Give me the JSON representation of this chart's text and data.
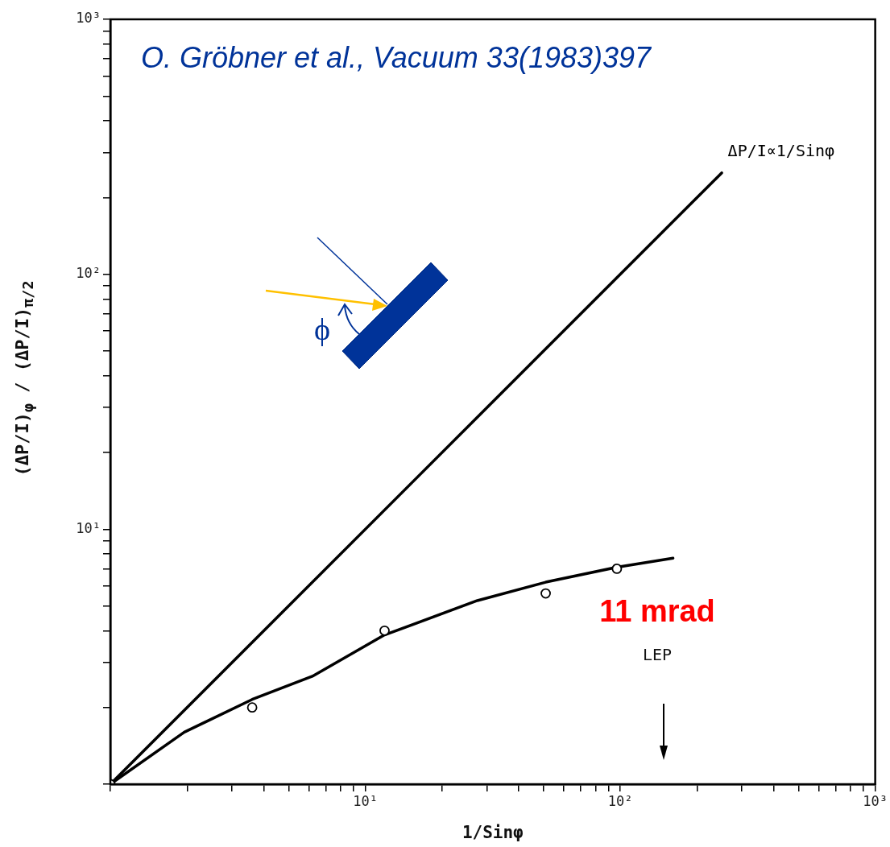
{
  "chart_data": {
    "type": "line",
    "xlabel": "1/Sinφ",
    "ylabel": "(ΔP/I)$_{φ}$ / (ΔP/I)$_{π/2}$",
    "log": "xy",
    "xlim": [
      1,
      1000
    ],
    "ylim": [
      1,
      1000
    ],
    "xticks": [
      {
        "value": 1,
        "label": null
      },
      {
        "value": 2,
        "label": null
      },
      {
        "value": 3,
        "label": null
      },
      {
        "value": 4,
        "label": null
      },
      {
        "value": 5,
        "label": null
      },
      {
        "value": 6,
        "label": null
      },
      {
        "value": 7,
        "label": null
      },
      {
        "value": 8,
        "label": null
      },
      {
        "value": 9,
        "label": null
      },
      {
        "value": 10,
        "label": "10¹"
      },
      {
        "value": 20,
        "label": null
      },
      {
        "value": 30,
        "label": null
      },
      {
        "value": 40,
        "label": null
      },
      {
        "value": 50,
        "label": null
      },
      {
        "value": 60,
        "label": null
      },
      {
        "value": 70,
        "label": null
      },
      {
        "value": 80,
        "label": null
      },
      {
        "value": 90,
        "label": null
      },
      {
        "value": 100,
        "label": "10²"
      },
      {
        "value": 200,
        "label": null
      },
      {
        "value": 300,
        "label": null
      },
      {
        "value": 400,
        "label": null
      },
      {
        "value": 500,
        "label": null
      },
      {
        "value": 600,
        "label": null
      },
      {
        "value": 700,
        "label": null
      },
      {
        "value": 800,
        "label": null
      },
      {
        "value": 900,
        "label": null
      },
      {
        "value": 1000,
        "label": "10³"
      }
    ],
    "yticks": [
      {
        "value": 1,
        "label": null
      },
      {
        "value": 2,
        "label": null
      },
      {
        "value": 3,
        "label": null
      },
      {
        "value": 4,
        "label": null
      },
      {
        "value": 5,
        "label": null
      },
      {
        "value": 6,
        "label": null
      },
      {
        "value": 7,
        "label": null
      },
      {
        "value": 8,
        "label": null
      },
      {
        "value": 9,
        "label": null
      },
      {
        "value": 10,
        "label": "10¹"
      },
      {
        "value": 20,
        "label": null
      },
      {
        "value": 30,
        "label": null
      },
      {
        "value": 40,
        "label": null
      },
      {
        "value": 50,
        "label": null
      },
      {
        "value": 60,
        "label": null
      },
      {
        "value": 70,
        "label": null
      },
      {
        "value": 80,
        "label": null
      },
      {
        "value": 90,
        "label": null
      },
      {
        "value": 100,
        "label": "10²"
      },
      {
        "value": 200,
        "label": null
      },
      {
        "value": 300,
        "label": null
      },
      {
        "value": 400,
        "label": null
      },
      {
        "value": 500,
        "label": null
      },
      {
        "value": 600,
        "label": null
      },
      {
        "value": 700,
        "label": null
      },
      {
        "value": 800,
        "label": null
      },
      {
        "value": 900,
        "label": null
      },
      {
        "value": 1000,
        "label": "10³"
      }
    ],
    "grid": false,
    "legend": false,
    "marker": "none",
    "series": [
      {
        "name": "ΔP/I∝1/Sinφ",
        "color": "#000000",
        "x": [
          1,
          250
        ],
        "values": [
          1,
          250
        ]
      },
      {
        "color": "#000000",
        "x": [
          1,
          1.95,
          3.6,
          6.2,
          11.9,
          27.5,
          51,
          97,
          161
        ],
        "values": [
          1,
          1.6,
          2.15,
          2.65,
          3.85,
          5.25,
          6.2,
          7.1,
          7.7
        ]
      },
      {
        "type": "scatter",
        "marker": "circle",
        "color": "#000000",
        "x": [
          1,
          3.6,
          11.9,
          51,
          97
        ],
        "values": [
          1,
          2.0,
          4.0,
          5.6,
          7.0
        ]
      }
    ],
    "annotations": [
      "O. Gröbner et al., Vacuum 33(1983)397",
      "11 mrad",
      "LEP",
      "ϕ"
    ]
  }
}
